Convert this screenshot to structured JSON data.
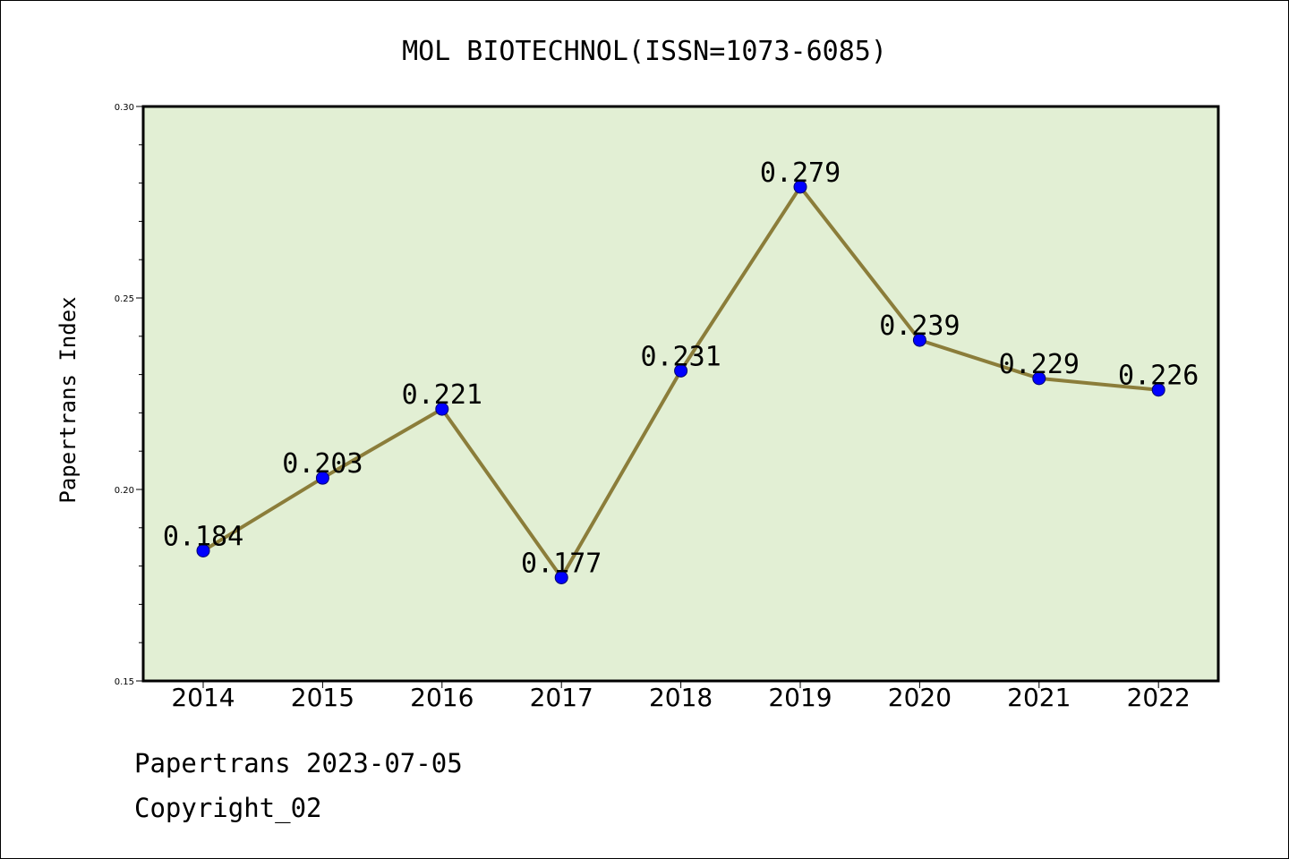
{
  "footer": {
    "line1": "Papertrans 2023-07-05",
    "line2": "Copyright_02"
  },
  "chart_data": {
    "type": "line",
    "title": "MOL BIOTECHNOL(ISSN=1073-6085)",
    "xlabel": "",
    "ylabel": "Papertrans Index",
    "x": [
      "2014",
      "2015",
      "2016",
      "2017",
      "2018",
      "2019",
      "2020",
      "2021",
      "2022"
    ],
    "values": [
      0.184,
      0.203,
      0.221,
      0.177,
      0.231,
      0.279,
      0.239,
      0.229,
      0.226
    ],
    "data_labels": [
      "0.184",
      "0.203",
      "0.221",
      "0.177",
      "0.231",
      "0.279",
      "0.239",
      "0.229",
      "0.226"
    ],
    "ylim": [
      0.15,
      0.3
    ],
    "yticks": [
      0.15,
      0.2,
      0.25,
      0.3
    ],
    "ytick_labels": [
      "0.15",
      "0.20",
      "0.25",
      "0.30"
    ],
    "grid": false,
    "legend": "none",
    "colors": {
      "plot_background": "#e2efd4",
      "line": "#8b7d3a",
      "marker": "#0000ff"
    }
  }
}
